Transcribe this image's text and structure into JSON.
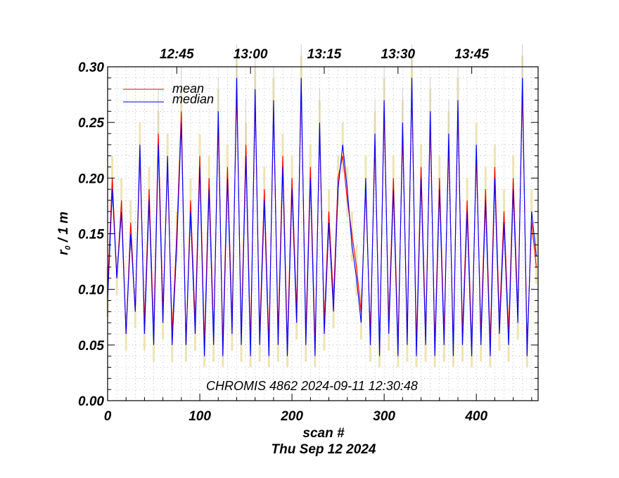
{
  "chart_data": {
    "type": "line",
    "xlabel": "scan #",
    "date_label": "Thu Sep 12 2024",
    "ylabel_main": "r",
    "ylabel_sub": "0",
    "ylabel_rest": " / 1 m",
    "annotation": "CHROMIS 4862 2024-09-11 12:30:48",
    "xlim": [
      0,
      467
    ],
    "ylim": [
      0,
      0.3
    ],
    "x_ticks": [
      0,
      100,
      200,
      300,
      400
    ],
    "x_tick_labels": [
      "0",
      "100",
      "200",
      "300",
      "400"
    ],
    "y_ticks": [
      0,
      0.05,
      0.1,
      0.15,
      0.2,
      0.25,
      0.3
    ],
    "y_tick_labels": [
      "0.00",
      "0.05",
      "0.10",
      "0.15",
      "0.20",
      "0.25",
      "0.30"
    ],
    "top_axis": {
      "labels": [
        "12:45",
        "13:00",
        "13:15",
        "13:30",
        "13:45"
      ],
      "scan_positions": [
        75,
        155,
        235,
        315,
        395
      ]
    },
    "grid": true,
    "legend_position": "top-left",
    "colors": {
      "mean": "#ff0000",
      "median": "#0000ff",
      "spread": "#eee3b3",
      "peaks": "#cccccc",
      "grid": "#999999"
    },
    "series": [
      {
        "name": "mean",
        "x": [
          0,
          5,
          10,
          15,
          20,
          25,
          30,
          35,
          40,
          45,
          50,
          55,
          60,
          65,
          70,
          75,
          80,
          85,
          90,
          95,
          100,
          105,
          110,
          115,
          120,
          125,
          130,
          135,
          140,
          145,
          150,
          155,
          160,
          165,
          170,
          175,
          180,
          185,
          190,
          195,
          200,
          205,
          210,
          215,
          220,
          225,
          230,
          235,
          240,
          245,
          250,
          255,
          260,
          265,
          270,
          275,
          280,
          285,
          290,
          295,
          300,
          305,
          310,
          315,
          320,
          325,
          330,
          335,
          340,
          345,
          350,
          355,
          360,
          365,
          370,
          375,
          380,
          385,
          390,
          395,
          400,
          405,
          410,
          415,
          420,
          425,
          430,
          435,
          440,
          445,
          450,
          455,
          460,
          465
        ],
        "values": [
          0.1,
          0.2,
          0.11,
          0.18,
          0.06,
          0.16,
          0.08,
          0.22,
          0.07,
          0.19,
          0.06,
          0.24,
          0.08,
          0.21,
          0.06,
          0.15,
          0.26,
          0.05,
          0.18,
          0.07,
          0.22,
          0.05,
          0.2,
          0.06,
          0.25,
          0.05,
          0.21,
          0.07,
          0.28,
          0.06,
          0.23,
          0.05,
          0.27,
          0.06,
          0.19,
          0.05,
          0.26,
          0.06,
          0.22,
          0.05,
          0.2,
          0.08,
          0.28,
          0.06,
          0.21,
          0.05,
          0.24,
          0.07,
          0.17,
          0.09,
          0.2,
          0.22,
          0.18,
          0.15,
          0.12,
          0.08,
          0.19,
          0.06,
          0.23,
          0.05,
          0.26,
          0.07,
          0.2,
          0.05,
          0.24,
          0.06,
          0.28,
          0.05,
          0.21,
          0.06,
          0.25,
          0.05,
          0.2,
          0.06,
          0.23,
          0.05,
          0.26,
          0.06,
          0.18,
          0.05,
          0.22,
          0.06,
          0.19,
          0.05,
          0.21,
          0.07,
          0.17,
          0.06,
          0.2,
          0.08,
          0.28,
          0.05,
          0.16,
          0.12
        ]
      },
      {
        "name": "median",
        "x": [
          0,
          5,
          10,
          15,
          20,
          25,
          30,
          35,
          40,
          45,
          50,
          55,
          60,
          65,
          70,
          75,
          80,
          85,
          90,
          95,
          100,
          105,
          110,
          115,
          120,
          125,
          130,
          135,
          140,
          145,
          150,
          155,
          160,
          165,
          170,
          175,
          180,
          185,
          190,
          195,
          200,
          205,
          210,
          215,
          220,
          225,
          230,
          235,
          240,
          245,
          250,
          255,
          260,
          265,
          270,
          275,
          280,
          285,
          290,
          295,
          300,
          305,
          310,
          315,
          320,
          325,
          330,
          335,
          340,
          345,
          350,
          355,
          360,
          365,
          370,
          375,
          380,
          385,
          390,
          395,
          400,
          405,
          410,
          415,
          420,
          425,
          430,
          435,
          440,
          445,
          450,
          455,
          460,
          465
        ],
        "values": [
          0.09,
          0.19,
          0.11,
          0.17,
          0.06,
          0.15,
          0.08,
          0.23,
          0.06,
          0.18,
          0.05,
          0.23,
          0.07,
          0.22,
          0.05,
          0.14,
          0.25,
          0.05,
          0.17,
          0.06,
          0.21,
          0.04,
          0.19,
          0.05,
          0.26,
          0.04,
          0.2,
          0.06,
          0.29,
          0.05,
          0.22,
          0.04,
          0.28,
          0.05,
          0.18,
          0.04,
          0.27,
          0.05,
          0.21,
          0.04,
          0.19,
          0.07,
          0.29,
          0.05,
          0.2,
          0.04,
          0.25,
          0.06,
          0.16,
          0.08,
          0.19,
          0.23,
          0.19,
          0.14,
          0.11,
          0.07,
          0.2,
          0.05,
          0.24,
          0.04,
          0.27,
          0.06,
          0.19,
          0.04,
          0.25,
          0.05,
          0.29,
          0.04,
          0.2,
          0.05,
          0.26,
          0.04,
          0.19,
          0.05,
          0.24,
          0.04,
          0.27,
          0.05,
          0.17,
          0.04,
          0.23,
          0.05,
          0.18,
          0.04,
          0.2,
          0.06,
          0.16,
          0.05,
          0.19,
          0.07,
          0.29,
          0.04,
          0.17,
          0.13
        ]
      }
    ]
  }
}
